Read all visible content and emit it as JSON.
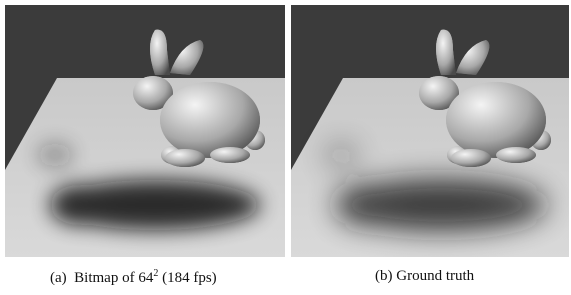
{
  "subfigures": [
    {
      "label": "(a)",
      "caption": "Bitmap of 64",
      "superscript": "2",
      "caption_end": "(184 fps)"
    },
    {
      "label": "(b)",
      "caption": "Ground truth"
    }
  ]
}
